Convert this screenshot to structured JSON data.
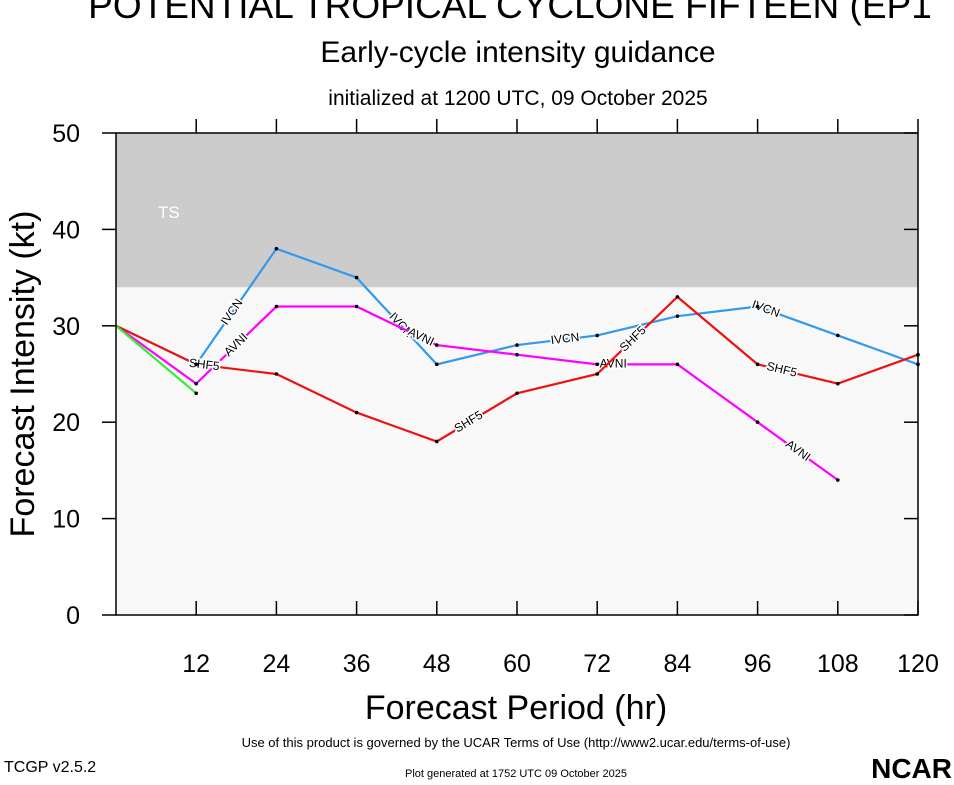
{
  "chart_data": {
    "type": "line",
    "title": "POTENTIAL TROPICAL CYCLONE FIFTEEN (EP1",
    "subtitle": "Early-cycle intensity guidance",
    "initialized": "initialized at 1200 UTC, 09 October 2025",
    "xlabel": "Forecast Period (hr)",
    "ylabel": "Forecast Intensity (kt)",
    "x": [
      0,
      12,
      24,
      36,
      48,
      60,
      72,
      84,
      96,
      108,
      120
    ],
    "xlim": [
      0,
      120
    ],
    "xticks": [
      12,
      24,
      36,
      48,
      60,
      72,
      84,
      96,
      108,
      120
    ],
    "ylim": [
      0,
      50
    ],
    "yticks": [
      0,
      10,
      20,
      30,
      40,
      50
    ],
    "bands": [
      {
        "label": "TS",
        "range": [
          34,
          50
        ],
        "color": "#cccccc"
      }
    ],
    "background": "#f8f8f8",
    "series": [
      {
        "name": "IVCN",
        "color": "#3399ee",
        "values": [
          30,
          26,
          38,
          35,
          26,
          28,
          29,
          31,
          32,
          29,
          26
        ]
      },
      {
        "name": "AVNI",
        "color": "#ff00ff",
        "values": [
          30,
          24,
          32,
          32,
          28,
          27,
          26,
          26,
          20,
          14,
          null
        ]
      },
      {
        "name": "SHF5",
        "color": "#ee1111",
        "values": [
          30,
          26,
          25,
          21,
          18,
          23,
          25,
          33,
          26,
          24,
          27
        ]
      },
      {
        "color": "#33ee33",
        "values": [
          30,
          23,
          null,
          null,
          null,
          null,
          null,
          null,
          null,
          null,
          null
        ]
      }
    ],
    "footer": "Use of this product is governed by the UCAR Terms of Use (http://www2.ucar.edu/terms-of-use)",
    "version": "TCGP v2.5.2",
    "generated": "Plot generated at 1752 UTC   09 October 2025",
    "logo": "NCAR"
  }
}
